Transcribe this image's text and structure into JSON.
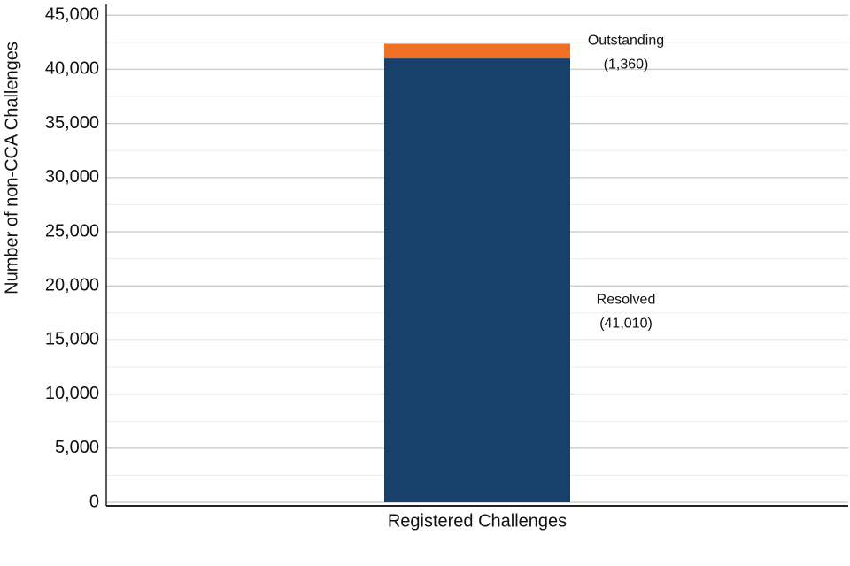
{
  "chart_data": {
    "type": "stacked-bar",
    "y_label": "Number of non-CCA Challenges",
    "categories": [
      "Registered Challenges"
    ],
    "series": [
      {
        "name": "Resolved",
        "color": "#17406a",
        "values": [
          41010
        ],
        "value_labels": [
          "(41,010)"
        ]
      },
      {
        "name": "Outstanding",
        "color": "#f07026",
        "values": [
          1360
        ],
        "value_labels": [
          "(1,360)"
        ]
      }
    ],
    "ylim": [
      0,
      46000
    ],
    "yticks": [
      0,
      {
        "value": 5000,
        "label": "5,000"
      },
      {
        "value": 10000,
        "label": "10,000"
      },
      {
        "value": 15000,
        "label": "15,000"
      },
      {
        "value": 20000,
        "label": "20,000"
      },
      {
        "value": 25000,
        "label": "25,000"
      },
      {
        "value": 30000,
        "label": "30,000"
      },
      {
        "value": 35000,
        "label": "35,000"
      },
      {
        "value": 40000,
        "label": "40,000"
      },
      {
        "value": 45000,
        "label": "45,000"
      }
    ],
    "minor_yticks": [
      2500,
      7500,
      12500,
      17500,
      22500,
      27500,
      32500,
      37500,
      42500
    ],
    "grid": true
  }
}
